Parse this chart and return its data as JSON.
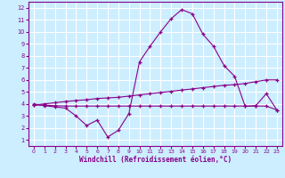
{
  "xlabel": "Windchill (Refroidissement éolien,°C)",
  "background_color": "#cceeff",
  "grid_color": "#ffffff",
  "line_color": "#880088",
  "x_ticks": [
    0,
    1,
    2,
    3,
    4,
    5,
    6,
    7,
    8,
    9,
    10,
    11,
    12,
    13,
    14,
    15,
    16,
    17,
    18,
    19,
    20,
    21,
    22,
    23
  ],
  "y_ticks": [
    1,
    2,
    3,
    4,
    5,
    6,
    7,
    8,
    9,
    10,
    11,
    12
  ],
  "ylim": [
    0.5,
    12.5
  ],
  "xlim": [
    -0.5,
    23.5
  ],
  "line1_x": [
    0,
    1,
    2,
    3,
    4,
    5,
    6,
    7,
    8,
    9,
    10,
    11,
    12,
    13,
    14,
    15,
    16,
    17,
    18,
    19,
    20,
    21,
    22,
    23
  ],
  "line1_y": [
    4.0,
    3.85,
    3.75,
    3.65,
    3.0,
    2.2,
    2.65,
    1.25,
    1.8,
    3.2,
    7.5,
    8.8,
    10.0,
    11.1,
    11.85,
    11.5,
    9.8,
    8.8,
    7.2,
    6.3,
    3.8,
    3.85,
    4.85,
    3.5
  ],
  "line2_x": [
    0,
    1,
    2,
    3,
    4,
    5,
    6,
    7,
    8,
    9,
    10,
    11,
    12,
    13,
    14,
    15,
    16,
    17,
    18,
    19,
    20,
    21,
    22,
    23
  ],
  "line2_y": [
    3.9,
    3.9,
    3.85,
    3.82,
    3.82,
    3.82,
    3.82,
    3.82,
    3.82,
    3.82,
    3.82,
    3.82,
    3.82,
    3.82,
    3.82,
    3.82,
    3.82,
    3.82,
    3.82,
    3.82,
    3.82,
    3.82,
    3.82,
    3.5
  ],
  "line3_x": [
    0,
    1,
    2,
    3,
    4,
    5,
    6,
    7,
    8,
    9,
    10,
    11,
    12,
    13,
    14,
    15,
    16,
    17,
    18,
    19,
    20,
    21,
    22,
    23
  ],
  "line3_y": [
    3.9,
    4.0,
    4.1,
    4.2,
    4.28,
    4.35,
    4.45,
    4.5,
    4.55,
    4.65,
    4.75,
    4.85,
    4.95,
    5.05,
    5.15,
    5.25,
    5.35,
    5.45,
    5.55,
    5.6,
    5.7,
    5.85,
    6.0,
    6.0
  ]
}
